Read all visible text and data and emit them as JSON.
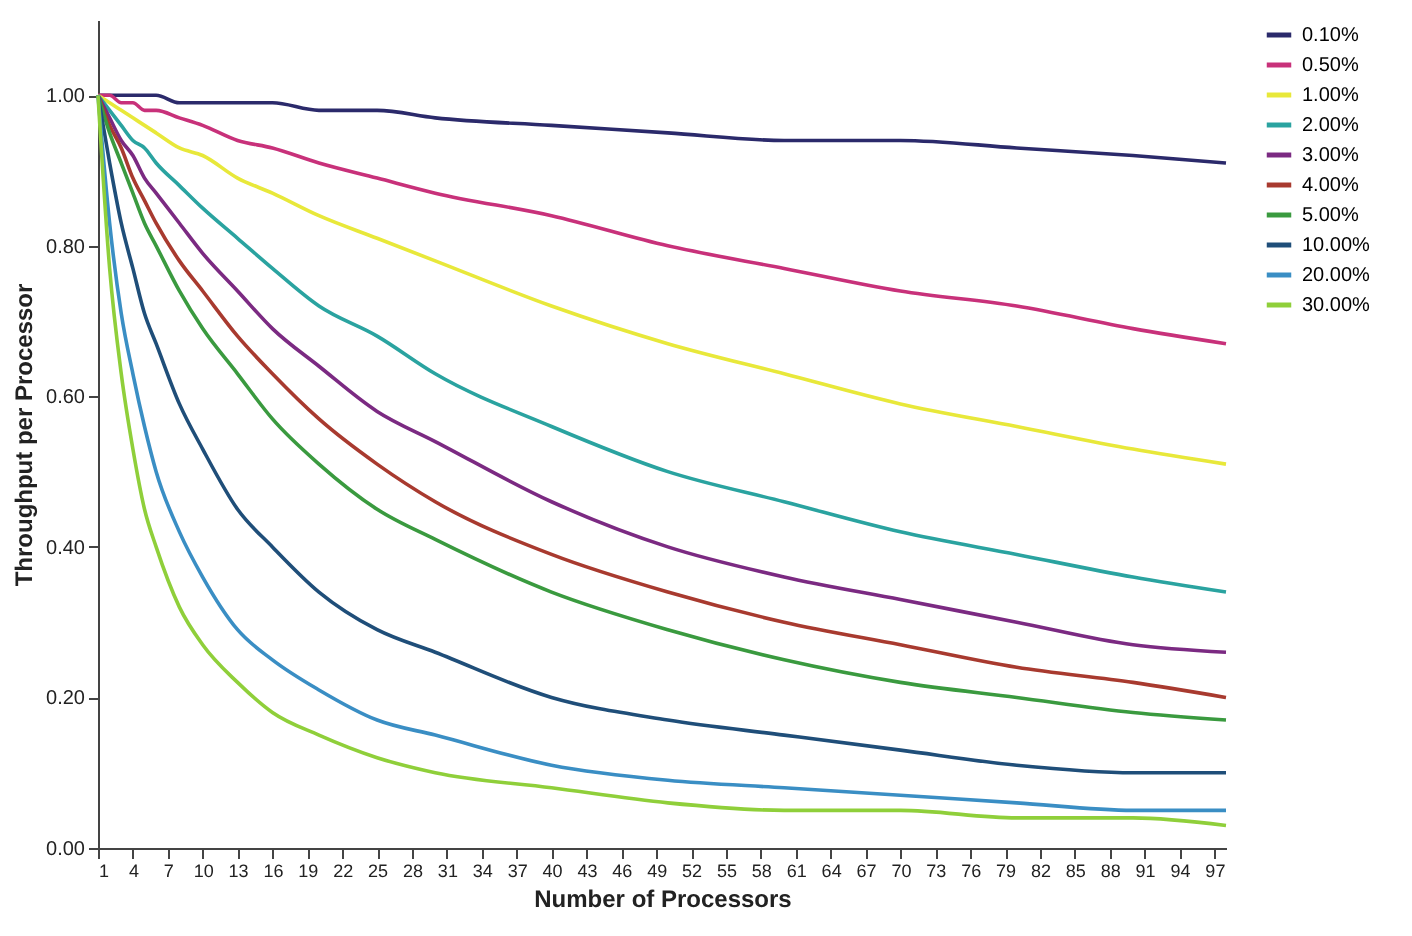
{
  "chart_data": {
    "type": "line",
    "xlabel": "Number of Processors",
    "ylabel": "Throughput per Processor",
    "x": [
      1,
      2,
      3,
      4,
      5,
      6,
      8,
      10,
      13,
      16,
      20,
      25,
      30,
      40,
      50,
      60,
      70,
      80,
      90,
      98
    ],
    "series": [
      {
        "name": "0.10%",
        "color": "#2b2a6b",
        "values": [
          1,
          1,
          1,
          1,
          1,
          1,
          0.99,
          0.99,
          0.99,
          0.99,
          0.98,
          0.98,
          0.97,
          0.96,
          0.95,
          0.94,
          0.94,
          0.93,
          0.92,
          0.91
        ]
      },
      {
        "name": "0.50%",
        "color": "#c8317a",
        "values": [
          1,
          1,
          0.99,
          0.99,
          0.98,
          0.98,
          0.97,
          0.96,
          0.94,
          0.93,
          0.91,
          0.89,
          0.87,
          0.84,
          0.8,
          0.77,
          0.74,
          0.72,
          0.69,
          0.67
        ]
      },
      {
        "name": "1.00%",
        "color": "#e8e83a",
        "values": [
          1,
          0.99,
          0.98,
          0.97,
          0.96,
          0.95,
          0.93,
          0.92,
          0.89,
          0.87,
          0.84,
          0.81,
          0.78,
          0.72,
          0.67,
          0.63,
          0.59,
          0.56,
          0.53,
          0.51
        ]
      },
      {
        "name": "2.00%",
        "color": "#2aa3a0",
        "values": [
          1,
          0.98,
          0.96,
          0.94,
          0.93,
          0.91,
          0.88,
          0.85,
          0.81,
          0.77,
          0.72,
          0.68,
          0.63,
          0.56,
          0.5,
          0.46,
          0.42,
          0.39,
          0.36,
          0.34
        ]
      },
      {
        "name": "3.00%",
        "color": "#7b2a82",
        "values": [
          1,
          0.97,
          0.94,
          0.92,
          0.89,
          0.87,
          0.83,
          0.79,
          0.74,
          0.69,
          0.64,
          0.58,
          0.54,
          0.46,
          0.4,
          0.36,
          0.33,
          0.3,
          0.27,
          0.26
        ]
      },
      {
        "name": "4.00%",
        "color": "#a83a2f",
        "values": [
          1,
          0.96,
          0.93,
          0.89,
          0.86,
          0.83,
          0.78,
          0.74,
          0.68,
          0.63,
          0.57,
          0.51,
          0.46,
          0.39,
          0.34,
          0.3,
          0.27,
          0.24,
          0.22,
          0.2
        ]
      },
      {
        "name": "5.00%",
        "color": "#3a9a3f",
        "values": [
          1,
          0.95,
          0.91,
          0.87,
          0.83,
          0.8,
          0.74,
          0.69,
          0.63,
          0.57,
          0.51,
          0.45,
          0.41,
          0.34,
          0.29,
          0.25,
          0.22,
          0.2,
          0.18,
          0.17
        ]
      },
      {
        "name": "10.00%",
        "color": "#1f4e79",
        "values": [
          1,
          0.91,
          0.83,
          0.77,
          0.71,
          0.67,
          0.59,
          0.53,
          0.45,
          0.4,
          0.34,
          0.29,
          0.26,
          0.2,
          0.17,
          0.15,
          0.13,
          0.11,
          0.1,
          0.1
        ]
      },
      {
        "name": "20.00%",
        "color": "#3a8ec4",
        "values": [
          1,
          0.83,
          0.71,
          0.63,
          0.56,
          0.5,
          0.42,
          0.36,
          0.29,
          0.25,
          0.21,
          0.17,
          0.15,
          0.11,
          0.09,
          0.08,
          0.07,
          0.06,
          0.05,
          0.05
        ]
      },
      {
        "name": "30.00%",
        "color": "#8fcf3a",
        "values": [
          1,
          0.77,
          0.63,
          0.53,
          0.45,
          0.4,
          0.32,
          0.27,
          0.22,
          0.18,
          0.15,
          0.12,
          0.1,
          0.08,
          0.06,
          0.05,
          0.05,
          0.04,
          0.04,
          0.03
        ]
      }
    ],
    "xlim": [
      1,
      98
    ],
    "xticks": [
      1,
      4,
      7,
      10,
      13,
      16,
      19,
      22,
      25,
      28,
      31,
      34,
      37,
      40,
      43,
      46,
      49,
      52,
      55,
      58,
      61,
      64,
      67,
      70,
      73,
      76,
      79,
      82,
      85,
      88,
      91,
      94,
      97
    ],
    "ylim": [
      0,
      1.1
    ],
    "yticks": [
      {
        "value": 0,
        "label": "0.00"
      },
      {
        "value": 0.2,
        "label": "0.20"
      },
      {
        "value": 0.4,
        "label": "0.40"
      },
      {
        "value": 0.6,
        "label": "0.60"
      },
      {
        "value": 0.8,
        "label": "0.80"
      },
      {
        "value": 1,
        "label": "1.00"
      }
    ],
    "grid": false,
    "legend": "right"
  }
}
